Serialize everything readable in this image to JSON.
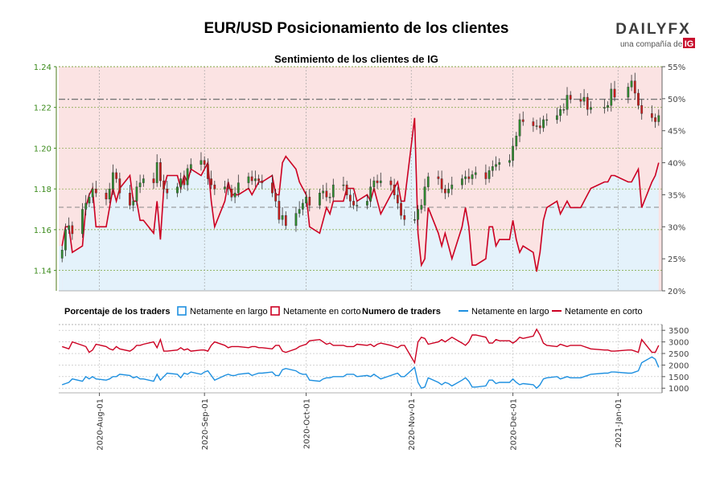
{
  "header": {
    "title": "EUR/USD Posicionamiento de los clientes",
    "subtitle": "Sentimiento de los clientes de IG",
    "logo_text": "DAILYFX",
    "logo_tagline": "una compañía de",
    "logo_ig": "IG"
  },
  "legend": {
    "pct_title": "Porcentaje de los traders",
    "pct_long": "Netamente en largo",
    "pct_short": "Netamente en corto",
    "num_title": "Numero de traders",
    "num_long": "Netamente en largo",
    "num_short": "Netamente en corto"
  },
  "colors": {
    "long": "#1e90e0",
    "short": "#cc0022",
    "bull_candle": "#2e8b2e",
    "bear_candle": "#cc1a1a",
    "price_axis": "#3a8a1a",
    "short_zone": "#fbe3e3",
    "long_zone": "#e4f2fb"
  },
  "chart_data": [
    {
      "type": "candlestick+line",
      "title": "Sentimiento de los clientes de IG",
      "x_dates": [
        "2020-07-21",
        "2020-07-22",
        "2020-07-23",
        "2020-07-24",
        "2020-07-27",
        "2020-07-28",
        "2020-07-29",
        "2020-07-30",
        "2020-07-31",
        "2020-08-03",
        "2020-08-04",
        "2020-08-05",
        "2020-08-06",
        "2020-08-07",
        "2020-08-10",
        "2020-08-11",
        "2020-08-12",
        "2020-08-13",
        "2020-08-14",
        "2020-08-17",
        "2020-08-18",
        "2020-08-19",
        "2020-08-20",
        "2020-08-21",
        "2020-08-24",
        "2020-08-25",
        "2020-08-26",
        "2020-08-27",
        "2020-08-28",
        "2020-08-31",
        "2020-09-01",
        "2020-09-02",
        "2020-09-03",
        "2020-09-04",
        "2020-09-07",
        "2020-09-08",
        "2020-09-09",
        "2020-09-10",
        "2020-09-11",
        "2020-09-14",
        "2020-09-15",
        "2020-09-16",
        "2020-09-17",
        "2020-09-18",
        "2020-09-21",
        "2020-09-22",
        "2020-09-23",
        "2020-09-24",
        "2020-09-25",
        "2020-09-28",
        "2020-09-29",
        "2020-09-30",
        "2020-10-01",
        "2020-10-02",
        "2020-10-05",
        "2020-10-06",
        "2020-10-07",
        "2020-10-08",
        "2020-10-09",
        "2020-10-12",
        "2020-10-13",
        "2020-10-14",
        "2020-10-15",
        "2020-10-16",
        "2020-10-19",
        "2020-10-20",
        "2020-10-21",
        "2020-10-22",
        "2020-10-23",
        "2020-10-26",
        "2020-10-27",
        "2020-10-28",
        "2020-10-29",
        "2020-10-30",
        "2020-11-02",
        "2020-11-03",
        "2020-11-04",
        "2020-11-05",
        "2020-11-06",
        "2020-11-09",
        "2020-11-10",
        "2020-11-11",
        "2020-11-12",
        "2020-11-13",
        "2020-11-16",
        "2020-11-17",
        "2020-11-18",
        "2020-11-19",
        "2020-11-20",
        "2020-11-23",
        "2020-11-24",
        "2020-11-25",
        "2020-11-26",
        "2020-11-27",
        "2020-11-30",
        "2020-12-01",
        "2020-12-02",
        "2020-12-03",
        "2020-12-04",
        "2020-12-07",
        "2020-12-08",
        "2020-12-09",
        "2020-12-10",
        "2020-12-11",
        "2020-12-14",
        "2020-12-15",
        "2020-12-16",
        "2020-12-17",
        "2020-12-18",
        "2020-12-21",
        "2020-12-22",
        "2020-12-23",
        "2020-12-24",
        "2020-12-28",
        "2020-12-29",
        "2020-12-30",
        "2020-12-31",
        "2021-01-04",
        "2021-01-05",
        "2021-01-06",
        "2021-01-07",
        "2021-01-08",
        "2021-01-11",
        "2021-01-12",
        "2021-01-13"
      ],
      "x_ticks": [
        "2020-Aug-01",
        "2020-Sep-01",
        "2020-Oct-01",
        "2020-Nov-01",
        "2020-Dec-01",
        "2021-Jan-01"
      ],
      "price_axis": {
        "ticks": [
          "1.14",
          "1.16",
          "1.18",
          "1.20",
          "1.22",
          "1.24"
        ],
        "range": [
          1.13,
          1.24
        ]
      },
      "pct_axis": {
        "ticks": [
          "20%",
          "25%",
          "30%",
          "35%",
          "40%",
          "45%",
          "50%",
          "55%"
        ],
        "range": [
          20,
          55
        ]
      },
      "reference_lines": {
        "price_dashed": 1.224,
        "price_dashed_lower": 1.171
      },
      "price_close": [
        1.15,
        1.16,
        1.162,
        1.158,
        1.17,
        1.173,
        1.176,
        1.18,
        1.178,
        1.175,
        1.18,
        1.188,
        1.185,
        1.178,
        1.172,
        1.174,
        1.181,
        1.183,
        1.185,
        1.183,
        1.193,
        1.184,
        1.18,
        1.178,
        1.181,
        1.185,
        1.182,
        1.19,
        1.192,
        1.194,
        1.192,
        1.185,
        1.182,
        1.18,
        1.181,
        1.18,
        1.176,
        1.178,
        1.183,
        1.186,
        1.184,
        1.185,
        1.184,
        1.183,
        1.178,
        1.174,
        1.165,
        1.167,
        1.162,
        1.168,
        1.17,
        1.173,
        1.176,
        1.172,
        1.178,
        1.179,
        1.176,
        1.176,
        1.182,
        1.182,
        1.177,
        1.174,
        1.172,
        1.172,
        1.174,
        1.181,
        1.184,
        1.183,
        1.184,
        1.182,
        1.177,
        1.173,
        1.167,
        1.165,
        1.165,
        1.17,
        1.172,
        1.181,
        1.186,
        1.185,
        1.18,
        1.178,
        1.18,
        1.182,
        1.185,
        1.186,
        1.185,
        1.187,
        1.188,
        1.185,
        1.189,
        1.191,
        1.192,
        1.193,
        1.194,
        1.201,
        1.206,
        1.214,
        1.213,
        1.211,
        1.211,
        1.21,
        1.214,
        1.214,
        1.216,
        1.219,
        1.219,
        1.226,
        1.224,
        1.223,
        1.225,
        1.219,
        1.22,
        1.22,
        1.221,
        1.229,
        1.225,
        1.23,
        1.233,
        1.227,
        1.221,
        1.217,
        1.215,
        1.213,
        1.216
      ],
      "long_pct": [
        27,
        30,
        30,
        26,
        27,
        33,
        35,
        36,
        30,
        30,
        33,
        36,
        34,
        36,
        38,
        34,
        34,
        31,
        31,
        29,
        34,
        28,
        36,
        38,
        38,
        36,
        38,
        37,
        39,
        38,
        39,
        40,
        34,
        30,
        34,
        37,
        35,
        35,
        35,
        36,
        35,
        36,
        37,
        37,
        38,
        35,
        35,
        40,
        41,
        39,
        37,
        36,
        35,
        30,
        29,
        31,
        33,
        32,
        34,
        34,
        36,
        36,
        36,
        34,
        35,
        34,
        36,
        34,
        32,
        35,
        36,
        37,
        34,
        34,
        47,
        29,
        24,
        25,
        33,
        29,
        27,
        29,
        27,
        25,
        30,
        33,
        30,
        24,
        24,
        25,
        30,
        30,
        27,
        28,
        28,
        31,
        28,
        26,
        27,
        26,
        23,
        26,
        31,
        33,
        34,
        32,
        33,
        34,
        33,
        33,
        34,
        35,
        36,
        37,
        37,
        38,
        38,
        37,
        37,
        38,
        39,
        33,
        37,
        38,
        40
      ],
      "traders_long": [
        1150,
        1200,
        1250,
        1400,
        1300,
        1500,
        1400,
        1500,
        1400,
        1350,
        1400,
        1500,
        1500,
        1600,
        1550,
        1450,
        1500,
        1400,
        1400,
        1300,
        1600,
        1350,
        1500,
        1650,
        1600,
        1450,
        1650,
        1600,
        1700,
        1600,
        1700,
        1750,
        1550,
        1350,
        1550,
        1600,
        1550,
        1550,
        1600,
        1650,
        1550,
        1600,
        1650,
        1650,
        1700,
        1550,
        1550,
        1800,
        1850,
        1750,
        1650,
        1600,
        1600,
        1350,
        1300,
        1400,
        1450,
        1450,
        1500,
        1500,
        1600,
        1600,
        1600,
        1500,
        1550,
        1500,
        1600,
        1500,
        1400,
        1550,
        1600,
        1650,
        1500,
        1500,
        1900,
        1250,
        1000,
        1050,
        1450,
        1250,
        1150,
        1250,
        1200,
        1100,
        1350,
        1450,
        1300,
        1050,
        1050,
        1100,
        1350,
        1350,
        1200,
        1250,
        1250,
        1400,
        1250,
        1150,
        1200,
        1150,
        1000,
        1150,
        1400,
        1450,
        1500,
        1400,
        1450,
        1500,
        1450,
        1450,
        1500,
        1550,
        1600,
        1650,
        1650,
        1700,
        1700,
        1650,
        1650,
        1700,
        1750,
        2100,
        2350,
        2250,
        1900
      ],
      "traders_short": [
        2800,
        2750,
        2700,
        3000,
        2850,
        2800,
        2550,
        2650,
        2900,
        2800,
        2700,
        2650,
        2800,
        2700,
        2600,
        2700,
        2850,
        2850,
        2900,
        3000,
        2750,
        3100,
        2600,
        2600,
        2650,
        2750,
        2650,
        2700,
        2600,
        2650,
        2650,
        2600,
        2850,
        3000,
        2850,
        2750,
        2800,
        2800,
        2800,
        2750,
        2800,
        2800,
        2750,
        2750,
        2700,
        2850,
        2850,
        2600,
        2550,
        2700,
        2800,
        2850,
        2900,
        3050,
        3100,
        3000,
        2900,
        2950,
        2850,
        2850,
        2800,
        2800,
        2800,
        2900,
        2850,
        2900,
        2800,
        2900,
        2950,
        2850,
        2800,
        2750,
        2850,
        2850,
        2100,
        3000,
        3200,
        3150,
        2900,
        3000,
        3100,
        3000,
        3100,
        3200,
        2950,
        2850,
        3000,
        3300,
        3300,
        3200,
        2950,
        2950,
        3100,
        3050,
        3050,
        2950,
        3050,
        3200,
        3150,
        3250,
        3550,
        3300,
        2950,
        2850,
        2800,
        2900,
        2850,
        2800,
        2850,
        2850,
        2800,
        2750,
        2700,
        2650,
        2650,
        2600,
        2600,
        2650,
        2650,
        2600,
        2550,
        3100,
        2550,
        2550,
        2850
      ]
    },
    {
      "type": "line",
      "title": "Numero de traders",
      "y_axis": {
        "ticks": [
          "1000",
          "1500",
          "2000",
          "2500",
          "3000",
          "3500"
        ],
        "range": [
          800,
          3750
        ]
      },
      "series": [
        {
          "name": "Netamente en largo",
          "values_key": "traders_long"
        },
        {
          "name": "Netamente en corto",
          "values_key": "traders_short"
        }
      ]
    }
  ]
}
